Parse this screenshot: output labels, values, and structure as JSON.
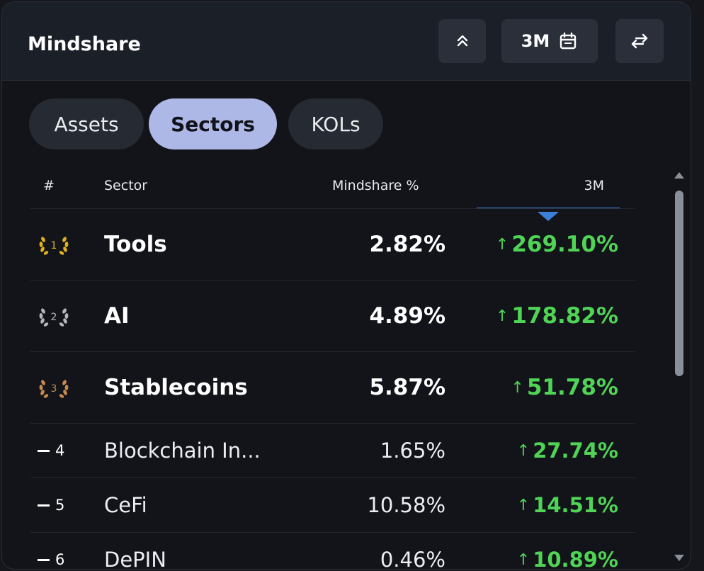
{
  "header": {
    "title": "Mindshare",
    "period_label": "3M",
    "collapse_icon": "chevrons-up-icon",
    "calendar_icon": "calendar-icon",
    "swap_icon": "swap-arrows-icon"
  },
  "tabs": [
    {
      "label": "Assets",
      "active": false
    },
    {
      "label": "Sectors",
      "active": true
    },
    {
      "label": "KOLs",
      "active": false
    }
  ],
  "table": {
    "columns": {
      "rank": "#",
      "sector": "Sector",
      "mindshare": "Mindshare %",
      "change": "3M"
    },
    "sort_column": "3M",
    "sort_direction": "descending",
    "rows": [
      {
        "rank": "1",
        "sector": "Tools",
        "mindshare": "2.82%",
        "change": "269.10%",
        "medal": "gold"
      },
      {
        "rank": "2",
        "sector": "AI",
        "mindshare": "4.89%",
        "change": "178.82%",
        "medal": "silver"
      },
      {
        "rank": "3",
        "sector": "Stablecoins",
        "mindshare": "5.87%",
        "change": "51.78%",
        "medal": "bronze"
      },
      {
        "rank": "4",
        "sector": "Blockchain In...",
        "mindshare": "1.65%",
        "change": "27.74%"
      },
      {
        "rank": "5",
        "sector": "CeFi",
        "mindshare": "10.58%",
        "change": "14.51%"
      },
      {
        "rank": "6",
        "sector": "DePIN",
        "mindshare": "0.46%",
        "change": "10.89%"
      }
    ]
  },
  "colors": {
    "positive": "#4fd455",
    "gold": "#e2b21c",
    "silver": "#b4b7be",
    "bronze": "#c88a4e",
    "active_tab": "#aeb8e6",
    "sort_indicator": "#3d7fd8"
  }
}
